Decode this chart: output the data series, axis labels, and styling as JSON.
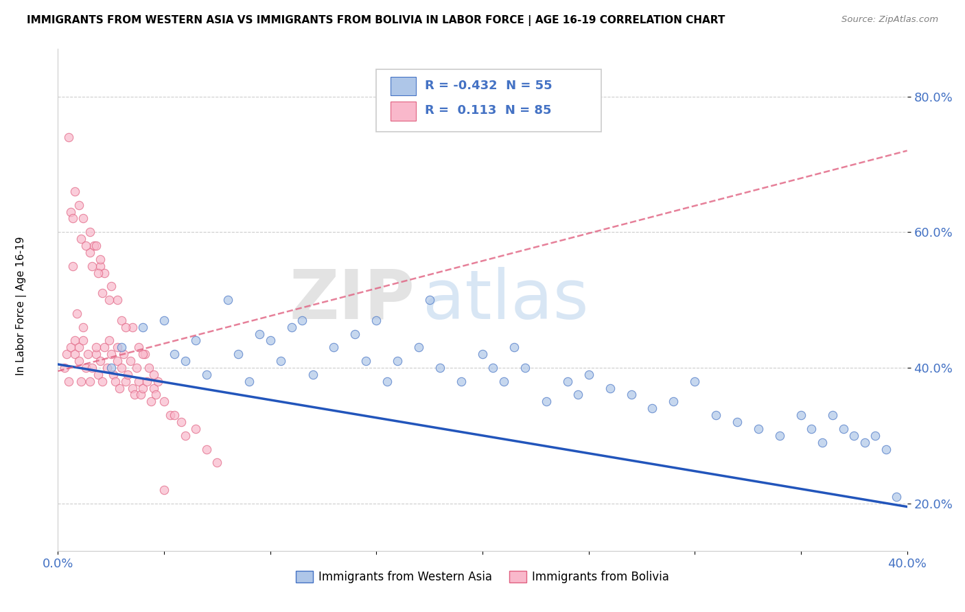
{
  "title": "IMMIGRANTS FROM WESTERN ASIA VS IMMIGRANTS FROM BOLIVIA IN LABOR FORCE | AGE 16-19 CORRELATION CHART",
  "source": "Source: ZipAtlas.com",
  "ylabel_label": "In Labor Force | Age 16-19",
  "legend_label1": "Immigrants from Western Asia",
  "legend_label2": "Immigrants from Bolivia",
  "R1": "-0.432",
  "N1": "55",
  "R2": "0.113",
  "N2": "85",
  "xlim": [
    0.0,
    0.4
  ],
  "ylim": [
    0.13,
    0.87
  ],
  "color_blue_fill": "#aec6e8",
  "color_blue_edge": "#4472c4",
  "color_pink_fill": "#f9b8cb",
  "color_pink_edge": "#e06080",
  "color_blue_line": "#2255bb",
  "color_pink_line": "#e06080",
  "color_text_blue": "#4472c4",
  "background_color": "#ffffff",
  "watermark_zip": "ZIP",
  "watermark_atlas": "atlas",
  "western_asia_x": [
    0.025,
    0.03,
    0.04,
    0.05,
    0.055,
    0.06,
    0.065,
    0.07,
    0.08,
    0.085,
    0.09,
    0.095,
    0.1,
    0.105,
    0.11,
    0.115,
    0.12,
    0.13,
    0.14,
    0.145,
    0.15,
    0.155,
    0.16,
    0.17,
    0.175,
    0.18,
    0.19,
    0.2,
    0.205,
    0.21,
    0.215,
    0.22,
    0.23,
    0.24,
    0.245,
    0.25,
    0.26,
    0.27,
    0.28,
    0.29,
    0.3,
    0.31,
    0.32,
    0.33,
    0.34,
    0.35,
    0.355,
    0.36,
    0.365,
    0.37,
    0.375,
    0.38,
    0.385,
    0.39,
    0.395
  ],
  "western_asia_y": [
    0.4,
    0.43,
    0.46,
    0.47,
    0.42,
    0.41,
    0.44,
    0.39,
    0.5,
    0.42,
    0.38,
    0.45,
    0.44,
    0.41,
    0.46,
    0.47,
    0.39,
    0.43,
    0.45,
    0.41,
    0.47,
    0.38,
    0.41,
    0.43,
    0.5,
    0.4,
    0.38,
    0.42,
    0.4,
    0.38,
    0.43,
    0.4,
    0.35,
    0.38,
    0.36,
    0.39,
    0.37,
    0.36,
    0.34,
    0.35,
    0.38,
    0.33,
    0.32,
    0.31,
    0.3,
    0.33,
    0.31,
    0.29,
    0.33,
    0.31,
    0.3,
    0.29,
    0.3,
    0.28,
    0.21
  ],
  "bolivia_x": [
    0.003,
    0.004,
    0.005,
    0.006,
    0.007,
    0.008,
    0.008,
    0.009,
    0.01,
    0.01,
    0.011,
    0.012,
    0.012,
    0.013,
    0.014,
    0.015,
    0.015,
    0.016,
    0.017,
    0.018,
    0.018,
    0.019,
    0.02,
    0.02,
    0.021,
    0.022,
    0.023,
    0.024,
    0.025,
    0.026,
    0.027,
    0.028,
    0.028,
    0.029,
    0.03,
    0.031,
    0.032,
    0.033,
    0.034,
    0.035,
    0.036,
    0.037,
    0.038,
    0.039,
    0.04,
    0.041,
    0.042,
    0.043,
    0.044,
    0.045,
    0.046,
    0.047,
    0.05,
    0.053,
    0.055,
    0.058,
    0.06,
    0.065,
    0.07,
    0.075,
    0.005,
    0.01,
    0.015,
    0.02,
    0.025,
    0.008,
    0.012,
    0.018,
    0.022,
    0.028,
    0.035,
    0.04,
    0.006,
    0.011,
    0.016,
    0.021,
    0.03,
    0.038,
    0.045,
    0.007,
    0.013,
    0.019,
    0.024,
    0.032,
    0.05
  ],
  "bolivia_y": [
    0.4,
    0.42,
    0.38,
    0.43,
    0.55,
    0.42,
    0.44,
    0.48,
    0.41,
    0.43,
    0.38,
    0.44,
    0.46,
    0.4,
    0.42,
    0.57,
    0.38,
    0.4,
    0.58,
    0.42,
    0.43,
    0.39,
    0.41,
    0.55,
    0.38,
    0.43,
    0.4,
    0.44,
    0.42,
    0.39,
    0.38,
    0.41,
    0.43,
    0.37,
    0.4,
    0.42,
    0.38,
    0.39,
    0.41,
    0.37,
    0.36,
    0.4,
    0.38,
    0.36,
    0.37,
    0.42,
    0.38,
    0.4,
    0.35,
    0.37,
    0.36,
    0.38,
    0.35,
    0.33,
    0.33,
    0.32,
    0.3,
    0.31,
    0.28,
    0.26,
    0.74,
    0.64,
    0.6,
    0.56,
    0.52,
    0.66,
    0.62,
    0.58,
    0.54,
    0.5,
    0.46,
    0.42,
    0.63,
    0.59,
    0.55,
    0.51,
    0.47,
    0.43,
    0.39,
    0.62,
    0.58,
    0.54,
    0.5,
    0.46,
    0.22
  ]
}
